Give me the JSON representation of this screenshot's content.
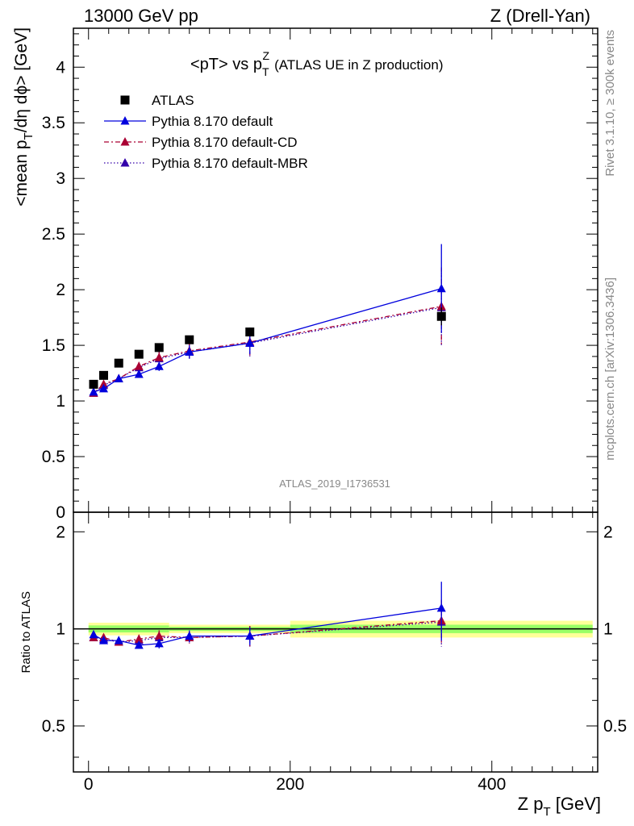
{
  "header": {
    "left": "13000 GeV pp",
    "right": "Z (Drell-Yan)"
  },
  "plot_title": {
    "main": "<pT> vs p",
    "sup": "Z",
    "sub": "T",
    "rest": "(ATLAS UE in Z production)"
  },
  "side_labels": {
    "rivet": "Rivet 3.1.10, ≥ 300k events",
    "mcplots": "mcplots.cern.ch [arXiv:1306.3436]"
  },
  "analysis_id": "ATLAS_2019_I1736531",
  "axes": {
    "ylabel_main_pre": "<mean p",
    "ylabel_main_sub1": "T",
    "ylabel_main_post": "/dη dϕ> [GeV]",
    "ylabel_ratio": "Ratio to ATLAS",
    "xlabel_pre": "Z p",
    "xlabel_sub": "T",
    "xlabel_post": " [GeV]"
  },
  "colors": {
    "data": "#000000",
    "default": "#0000dd",
    "cd": "#aa0033",
    "mbr": "#3300aa",
    "band_green": "#99ff66",
    "band_yellow": "#ffff99"
  },
  "chart_data": {
    "type": "scatter",
    "x_range": [
      -15,
      505
    ],
    "main": {
      "ylim": [
        0,
        4.35
      ],
      "y_ticks": [
        "0",
        "0.5",
        "1",
        "1.5",
        "2",
        "2.5",
        "3",
        "3.5",
        "4"
      ],
      "y_tick_values": [
        0,
        0.5,
        1,
        1.5,
        2,
        2.5,
        3,
        3.5,
        4
      ]
    },
    "ratio": {
      "ylim": [
        0.36,
        2.3
      ],
      "scale": "log",
      "y_ticks": [
        "0.5",
        "1",
        "2"
      ],
      "y_tick_values": [
        0.5,
        1,
        2
      ]
    },
    "x_ticks": [
      "0",
      "200",
      "400"
    ],
    "x_tick_values": [
      0,
      200,
      400
    ],
    "legend_placement": "top-left",
    "series": [
      {
        "name": "ATLAS",
        "marker": "square",
        "color": "#000000",
        "x": [
          5,
          15,
          30,
          50,
          70,
          100,
          160,
          350
        ],
        "y": [
          1.15,
          1.23,
          1.34,
          1.42,
          1.48,
          1.55,
          1.62,
          1.76
        ],
        "yerr": [
          0.02,
          0.02,
          0.02,
          0.02,
          0.02,
          0.03,
          0.04,
          0.08
        ],
        "ratio_band_edges": [
          0,
          80,
          200,
          500
        ],
        "ratio_band_green": [
          0.025,
          0.015,
          0.03
        ],
        "ratio_band_yellow": [
          0.045,
          0.03,
          0.06
        ]
      },
      {
        "name": "Pythia 8.170 default",
        "marker": "triangle",
        "line": "solid",
        "color": "#0000dd",
        "x": [
          5,
          15,
          30,
          50,
          70,
          100,
          160,
          350
        ],
        "y": [
          1.08,
          1.11,
          1.2,
          1.24,
          1.31,
          1.44,
          1.52,
          2.01
        ],
        "yerr": [
          0.02,
          0.02,
          0.02,
          0.03,
          0.04,
          0.06,
          0.1,
          0.4
        ],
        "ratio": [
          0.96,
          0.92,
          0.92,
          0.89,
          0.9,
          0.95,
          0.95,
          1.16
        ],
        "ratio_err": [
          0.02,
          0.02,
          0.02,
          0.02,
          0.03,
          0.04,
          0.06,
          0.24
        ]
      },
      {
        "name": "Pythia 8.170 default-CD",
        "marker": "triangle",
        "line": "dashdot",
        "color": "#aa0033",
        "x": [
          5,
          15,
          30,
          50,
          70,
          100,
          160,
          350
        ],
        "y": [
          1.07,
          1.15,
          1.2,
          1.31,
          1.39,
          1.45,
          1.53,
          1.85
        ],
        "yerr": [
          0.02,
          0.02,
          0.03,
          0.04,
          0.06,
          0.07,
          0.12,
          0.35
        ],
        "ratio": [
          0.94,
          0.94,
          0.91,
          0.93,
          0.95,
          0.94,
          0.95,
          1.06
        ],
        "ratio_err": [
          0.02,
          0.02,
          0.02,
          0.03,
          0.04,
          0.04,
          0.07,
          0.17
        ]
      },
      {
        "name": "Pythia 8.170 default-MBR",
        "marker": "triangle",
        "line": "dotted",
        "color": "#3300aa",
        "x": [
          5,
          15,
          30,
          50,
          70,
          100,
          160,
          350
        ],
        "y": [
          1.07,
          1.14,
          1.2,
          1.3,
          1.38,
          1.44,
          1.52,
          1.84
        ],
        "yerr": [
          0.02,
          0.02,
          0.03,
          0.04,
          0.06,
          0.07,
          0.12,
          0.34
        ],
        "ratio": [
          0.94,
          0.93,
          0.91,
          0.92,
          0.94,
          0.94,
          0.95,
          1.05
        ],
        "ratio_err": [
          0.02,
          0.02,
          0.02,
          0.03,
          0.04,
          0.04,
          0.07,
          0.17
        ]
      }
    ]
  }
}
